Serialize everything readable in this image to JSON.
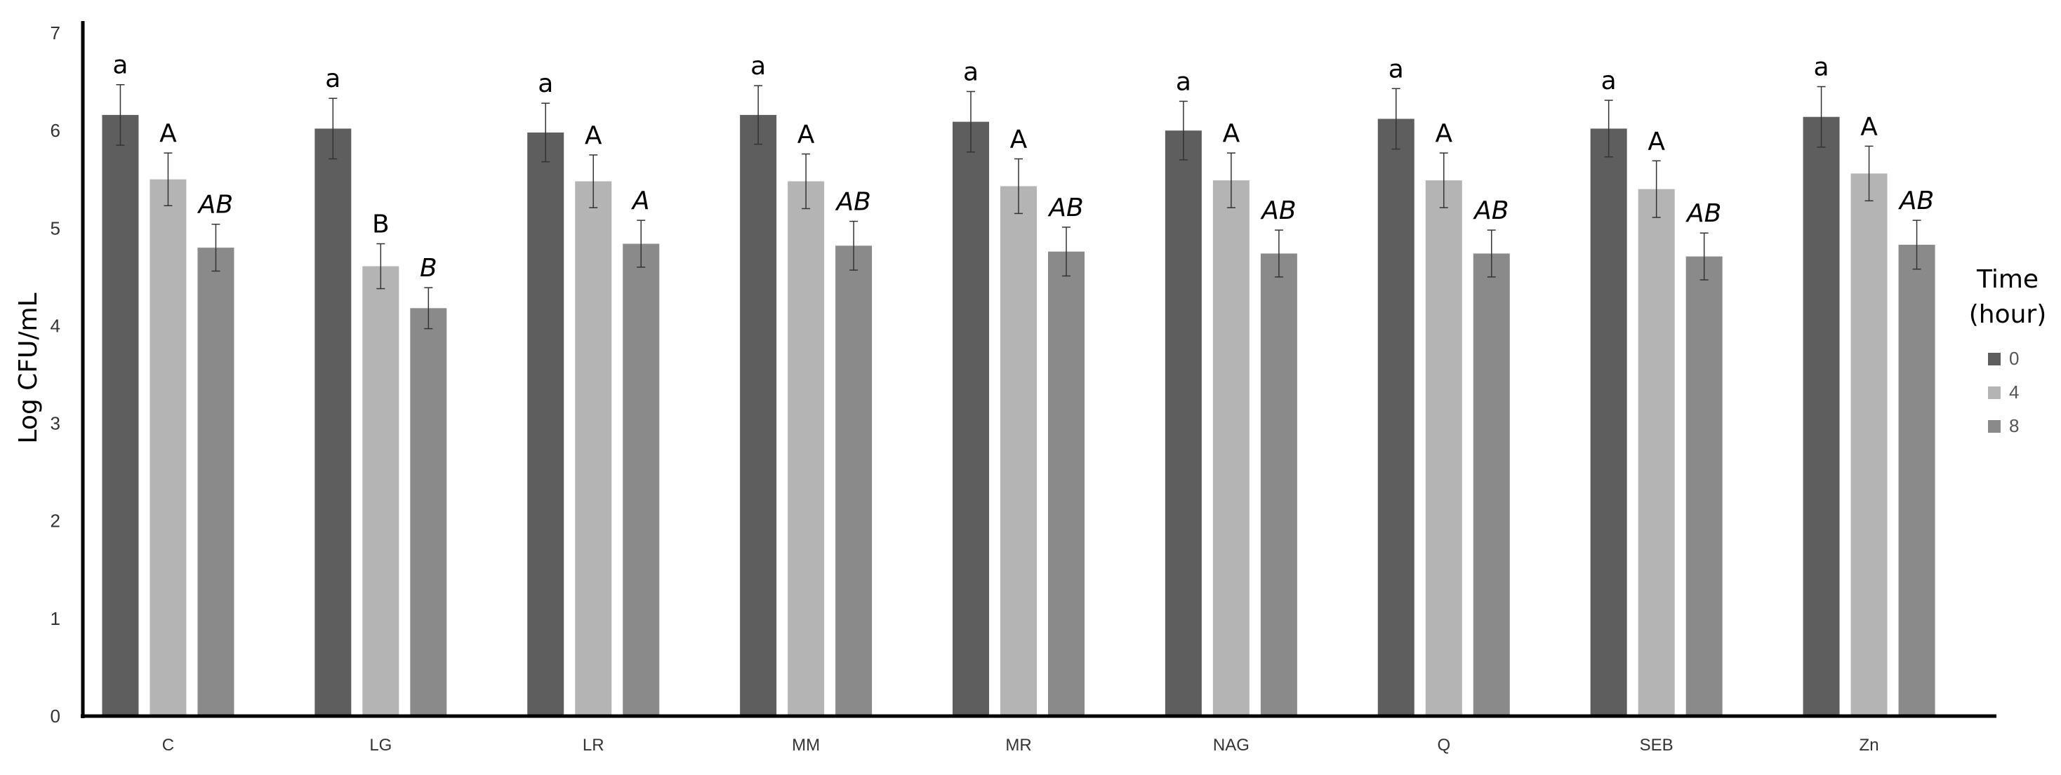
{
  "chart_data": {
    "type": "bar",
    "ylabel": "Log CFU/mL",
    "xlabel": "",
    "ylim": [
      0,
      7
    ],
    "yticks": [
      "0",
      "1",
      "2",
      "3",
      "4",
      "5",
      "6",
      "7"
    ],
    "categories": [
      "C",
      "LG",
      "LR",
      "MM",
      "MR",
      "NAG",
      "Q",
      "SEB",
      "Zn"
    ],
    "legend": {
      "title_lines": [
        "Time",
        "(hour)"
      ],
      "position": "right"
    },
    "series": [
      {
        "name": "0",
        "color": "#5e5e5e",
        "values": [
          6.16,
          6.02,
          5.98,
          6.16,
          6.09,
          6.0,
          6.12,
          6.02,
          6.14
        ],
        "errors": [
          0.31,
          0.31,
          0.3,
          0.3,
          0.31,
          0.3,
          0.31,
          0.29,
          0.31
        ],
        "letters": [
          "a",
          "a",
          "a",
          "a",
          "a",
          "a",
          "a",
          "a",
          "a"
        ],
        "letter_style": "lower"
      },
      {
        "name": "4",
        "color": "#b4b4b4",
        "values": [
          5.5,
          4.61,
          5.48,
          5.48,
          5.43,
          5.49,
          5.49,
          5.4,
          5.56
        ],
        "errors": [
          0.27,
          0.23,
          0.27,
          0.28,
          0.28,
          0.28,
          0.28,
          0.29,
          0.28
        ],
        "letters": [
          "A",
          "B",
          "A",
          "A",
          "A",
          "A",
          "A",
          "A",
          "A"
        ],
        "letter_style": "upper"
      },
      {
        "name": "8",
        "color": "#8a8a8a",
        "values": [
          4.8,
          4.18,
          4.84,
          4.82,
          4.76,
          4.74,
          4.74,
          4.71,
          4.83
        ],
        "errors": [
          0.24,
          0.21,
          0.24,
          0.25,
          0.25,
          0.24,
          0.24,
          0.24,
          0.25
        ],
        "letters": [
          "AB",
          "B",
          "A",
          "AB",
          "AB",
          "AB",
          "AB",
          "AB",
          "AB"
        ],
        "letter_style": "italic"
      }
    ]
  }
}
